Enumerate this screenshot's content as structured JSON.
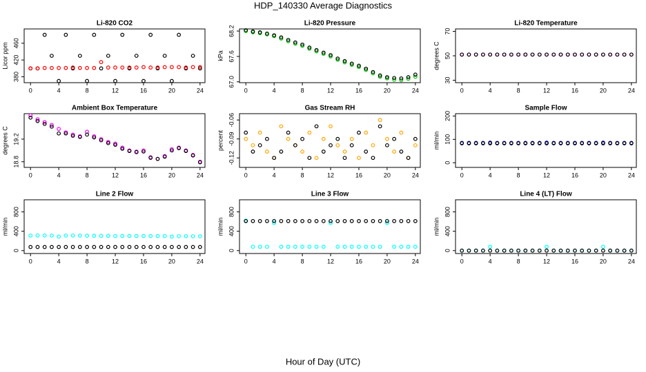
{
  "title": "HDP_140330  Average Diagnostics",
  "xlabel": "Hour of Day (UTC)",
  "chart_data": [
    {
      "type": "scatter",
      "title": "Li-820 CO2",
      "ylabel": "Licor ppm",
      "xlim": [
        -0.9,
        24.7
      ],
      "xticks": [
        0,
        4,
        8,
        12,
        16,
        20,
        24
      ],
      "ylim": [
        366,
        494
      ],
      "yticks": [
        380,
        420,
        460
      ],
      "x": [
        0,
        1,
        2,
        3,
        4,
        5,
        6,
        7,
        8,
        9,
        10,
        11,
        12,
        13,
        14,
        15,
        16,
        17,
        18,
        19,
        20,
        21,
        22,
        23,
        24
      ],
      "series": [
        {
          "color": "#000000",
          "values": [
            400,
            400,
            480,
            430,
            370,
            480,
            400,
            430,
            370,
            480,
            400,
            430,
            370,
            480,
            400,
            430,
            370,
            480,
            400,
            430,
            370,
            480,
            400,
            430,
            400
          ]
        },
        {
          "color": "#ff0000",
          "values": [
            400,
            400,
            401,
            401,
            401,
            401,
            402,
            401,
            401,
            401,
            415,
            402,
            402,
            402,
            402,
            402,
            403,
            402,
            402,
            403,
            403,
            403,
            402,
            403,
            403
          ]
        }
      ]
    },
    {
      "type": "scatter",
      "title": "Li-820 Pressure",
      "ylabel": "kPa",
      "xlim": [
        -0.9,
        24.7
      ],
      "xticks": [
        0,
        4,
        8,
        12,
        16,
        20,
        24
      ],
      "ylim": [
        66.98,
        68.25
      ],
      "yticks": [
        {
          "value": 67,
          "label": "67.0"
        },
        67.6,
        68.2
      ],
      "x": [
        0,
        1,
        2,
        3,
        4,
        5,
        6,
        7,
        8,
        9,
        10,
        11,
        12,
        13,
        14,
        15,
        16,
        17,
        18,
        19,
        20,
        21,
        22,
        23,
        24
      ],
      "series": [
        {
          "color": "#00cc00",
          "values": [
            68.2,
            68.17,
            68.15,
            68.12,
            68.08,
            68.02,
            67.96,
            67.9,
            67.85,
            67.78,
            67.72,
            67.66,
            67.6,
            67.52,
            67.46,
            67.4,
            67.35,
            67.28,
            67.2,
            67.12,
            67.08,
            67.05,
            67.04,
            67.07,
            67.12
          ]
        },
        {
          "color": "#000000",
          "values": [
            68.22,
            68.19,
            68.17,
            68.14,
            68.1,
            68.05,
            67.99,
            67.93,
            67.88,
            67.81,
            67.75,
            67.69,
            67.63,
            67.55,
            67.49,
            67.43,
            67.38,
            67.31,
            67.23,
            67.15,
            67.11,
            67.09,
            67.08,
            67.11,
            67.17
          ]
        }
      ]
    },
    {
      "type": "scatter",
      "title": "Li-820 Temperature",
      "ylabel": "degrees C",
      "xlim": [
        -0.9,
        24.7
      ],
      "xticks": [
        0,
        4,
        8,
        12,
        16,
        20,
        24
      ],
      "ylim": [
        28,
        72
      ],
      "yticks": [
        30,
        50,
        70
      ],
      "x": [
        0,
        1,
        2,
        3,
        4,
        5,
        6,
        7,
        8,
        9,
        10,
        11,
        12,
        13,
        14,
        15,
        16,
        17,
        18,
        19,
        20,
        21,
        22,
        23,
        24
      ],
      "series": [
        {
          "color": "#ff00ff",
          "values": [
            51,
            51,
            51,
            51,
            51,
            51,
            51,
            51,
            51,
            51,
            51,
            51,
            51,
            51,
            51,
            51,
            51,
            51,
            51,
            51,
            51,
            51,
            51,
            51,
            51
          ]
        },
        {
          "color": "#000000",
          "values": [
            51,
            51,
            51,
            51,
            51,
            51,
            51,
            51,
            51,
            51,
            51,
            51,
            51,
            51,
            51,
            51,
            51,
            51,
            51,
            51,
            51,
            51,
            51,
            51,
            51
          ]
        }
      ]
    },
    {
      "type": "scatter",
      "title": "Ambient Box Temperature",
      "ylabel": "degrees C",
      "xlim": [
        -0.9,
        24.7
      ],
      "xticks": [
        0,
        4,
        8,
        12,
        16,
        20,
        24
      ],
      "ylim": [
        18.7,
        19.65
      ],
      "yticks": [
        18.8,
        19.2
      ],
      "x": [
        0,
        1,
        2,
        3,
        4,
        5,
        6,
        7,
        8,
        9,
        10,
        11,
        12,
        13,
        14,
        15,
        16,
        17,
        18,
        19,
        20,
        21,
        22,
        23,
        24
      ],
      "series": [
        {
          "color": "#ff00ff",
          "values": [
            19.62,
            19.55,
            19.5,
            19.45,
            19.38,
            19.32,
            19.28,
            19.25,
            19.33,
            19.25,
            19.2,
            19.15,
            19.12,
            19.05,
            19,
            18.98,
            19,
            18.88,
            18.85,
            18.9,
            19.02,
            19.05,
            19,
            18.92,
            18.8
          ]
        },
        {
          "color": "#000000",
          "values": [
            19.58,
            19.52,
            19.47,
            19.42,
            19.3,
            19.3,
            19.26,
            19.24,
            19.28,
            19.23,
            19.18,
            19.13,
            19.1,
            19.03,
            18.99,
            18.97,
            18.98,
            18.87,
            18.85,
            18.89,
            19,
            19.04,
            18.99,
            18.91,
            18.79
          ]
        }
      ]
    },
    {
      "type": "scatter",
      "title": "Gas Stream RH",
      "ylabel": "percent",
      "xlim": [
        -0.9,
        24.7
      ],
      "xticks": [
        0,
        4,
        8,
        12,
        16,
        20,
        24
      ],
      "ylim": [
        -0.135,
        -0.05
      ],
      "yticks": [
        -0.12,
        -0.09,
        -0.06
      ],
      "x": [
        0,
        1,
        2,
        3,
        4,
        5,
        6,
        7,
        8,
        9,
        10,
        11,
        12,
        13,
        14,
        15,
        16,
        17,
        18,
        19,
        20,
        21,
        22,
        23,
        24
      ],
      "series": [
        {
          "color": "#ffa500",
          "values": [
            -0.09,
            -0.1,
            -0.08,
            -0.11,
            -0.12,
            -0.07,
            -0.09,
            -0.1,
            -0.11,
            -0.08,
            -0.12,
            -0.09,
            -0.07,
            -0.1,
            -0.11,
            -0.09,
            -0.12,
            -0.08,
            -0.1,
            -0.06,
            -0.09,
            -0.11,
            -0.08,
            -0.12,
            -0.1
          ]
        },
        {
          "color": "#000000",
          "values": [
            -0.08,
            -0.11,
            -0.1,
            -0.09,
            -0.12,
            -0.11,
            -0.08,
            -0.1,
            -0.09,
            -0.12,
            -0.07,
            -0.11,
            -0.1,
            -0.09,
            -0.12,
            -0.1,
            -0.08,
            -0.11,
            -0.12,
            -0.07,
            -0.1,
            -0.09,
            -0.11,
            -0.12,
            -0.09
          ]
        }
      ]
    },
    {
      "type": "scatter",
      "title": "Sample Flow",
      "ylabel": "ml/min",
      "xlim": [
        -0.9,
        24.7
      ],
      "xticks": [
        0,
        4,
        8,
        12,
        16,
        20,
        24
      ],
      "ylim": [
        -20,
        210
      ],
      "yticks": [
        0,
        100,
        200
      ],
      "x": [
        0,
        1,
        2,
        3,
        4,
        5,
        6,
        7,
        8,
        9,
        10,
        11,
        12,
        13,
        14,
        15,
        16,
        17,
        18,
        19,
        20,
        21,
        22,
        23,
        24
      ],
      "series": [
        {
          "color": "#0000cc",
          "values": [
            85,
            85,
            85,
            85,
            86,
            85,
            85,
            85,
            85,
            85,
            85,
            85,
            86,
            85,
            85,
            85,
            85,
            85,
            85,
            85,
            86,
            85,
            85,
            85,
            85
          ]
        },
        {
          "color": "#000000",
          "values": [
            83,
            83,
            83,
            83,
            83,
            83,
            83,
            83,
            83,
            83,
            83,
            83,
            83,
            83,
            83,
            83,
            83,
            83,
            83,
            83,
            83,
            83,
            83,
            83,
            83
          ]
        }
      ]
    },
    {
      "type": "scatter",
      "title": "Line 2 Flow",
      "ylabel": "ml/min",
      "xlim": [
        -0.9,
        24.7
      ],
      "xticks": [
        0,
        4,
        8,
        12,
        16,
        20,
        24
      ],
      "ylim": [
        -60,
        1050
      ],
      "yticks": [
        0,
        400,
        800
      ],
      "x": [
        0,
        1,
        2,
        3,
        4,
        5,
        6,
        7,
        8,
        9,
        10,
        11,
        12,
        13,
        14,
        15,
        16,
        17,
        18,
        19,
        20,
        21,
        22,
        23,
        24
      ],
      "series": [
        {
          "color": "#00ffff",
          "values": [
            310,
            312,
            312,
            310,
            290,
            310,
            312,
            310,
            308,
            308,
            306,
            306,
            300,
            304,
            304,
            302,
            302,
            300,
            300,
            300,
            290,
            298,
            298,
            296,
            296
          ]
        },
        {
          "color": "#000000",
          "values": [
            75,
            75,
            75,
            75,
            75,
            75,
            75,
            75,
            75,
            75,
            75,
            75,
            75,
            75,
            75,
            75,
            75,
            75,
            75,
            75,
            75,
            75,
            75,
            75,
            75
          ]
        }
      ]
    },
    {
      "type": "scatter",
      "title": "Line 3 Flow",
      "ylabel": "ml/min",
      "xlim": [
        -0.9,
        24.7
      ],
      "xticks": [
        0,
        4,
        8,
        12,
        16,
        20,
        24
      ],
      "ylim": [
        -60,
        1050
      ],
      "yticks": [
        0,
        400,
        800
      ],
      "x": [
        0,
        1,
        2,
        3,
        4,
        5,
        6,
        7,
        8,
        9,
        10,
        11,
        12,
        13,
        14,
        15,
        16,
        17,
        18,
        19,
        20,
        21,
        22,
        23,
        24
      ],
      "series": [
        {
          "color": "#00ffff",
          "values": [
            620,
            80,
            80,
            80,
            570,
            80,
            80,
            80,
            80,
            80,
            80,
            80,
            570,
            80,
            80,
            80,
            80,
            80,
            80,
            80,
            570,
            80,
            80,
            80,
            80
          ]
        },
        {
          "color": "#000000",
          "values": [
            610,
            610,
            610,
            610,
            610,
            610,
            610,
            610,
            610,
            610,
            610,
            610,
            610,
            610,
            610,
            610,
            610,
            610,
            610,
            610,
            610,
            610,
            610,
            610,
            610
          ]
        }
      ]
    },
    {
      "type": "scatter",
      "title": "Line 4 (LT) Flow",
      "ylabel": "ml/min",
      "xlim": [
        -0.9,
        24.7
      ],
      "xticks": [
        0,
        4,
        8,
        12,
        16,
        20,
        24
      ],
      "ylim": [
        -60,
        1050
      ],
      "yticks": [
        0,
        400,
        800
      ],
      "x": [
        0,
        1,
        2,
        3,
        4,
        5,
        6,
        7,
        8,
        9,
        10,
        11,
        12,
        13,
        14,
        15,
        16,
        17,
        18,
        19,
        20,
        21,
        22,
        23,
        24
      ],
      "series": [
        {
          "color": "#00ffff",
          "values": [
            0,
            0,
            0,
            0,
            80,
            0,
            0,
            0,
            0,
            0,
            0,
            0,
            80,
            0,
            0,
            0,
            0,
            0,
            0,
            0,
            80,
            0,
            0,
            0,
            0
          ]
        },
        {
          "color": "#000000",
          "values": [
            0,
            0,
            0,
            0,
            0,
            0,
            0,
            0,
            0,
            0,
            0,
            0,
            0,
            0,
            0,
            0,
            0,
            0,
            0,
            0,
            0,
            0,
            0,
            0,
            0
          ]
        }
      ]
    }
  ]
}
